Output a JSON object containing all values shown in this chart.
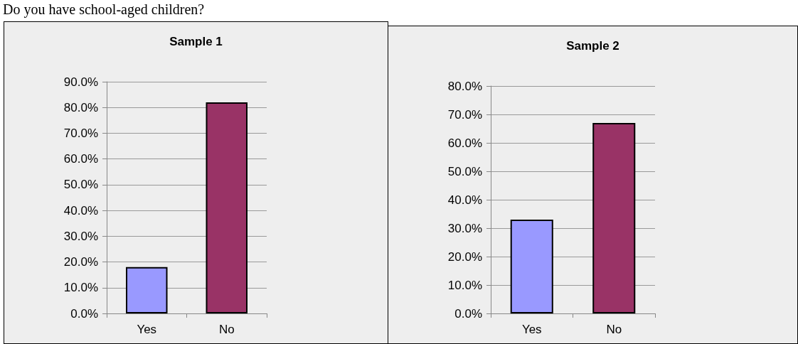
{
  "chart_data": [
    {
      "type": "bar",
      "title": "Sample 1",
      "annotations": [
        "Do you have school-aged children?"
      ],
      "categories": [
        "Yes",
        "No"
      ],
      "values": [
        18,
        82
      ],
      "colors": [
        "#9999ff",
        "#993366"
      ],
      "ylim": [
        0,
        90
      ],
      "yticks": [
        {
          "value": 0,
          "label": "0.0%"
        },
        {
          "value": 10,
          "label": "10.0%"
        },
        {
          "value": 20,
          "label": "20.0%"
        },
        {
          "value": 30,
          "label": "30.0%"
        },
        {
          "value": 40,
          "label": "40.0%"
        },
        {
          "value": 50,
          "label": "50.0%"
        },
        {
          "value": 60,
          "label": "60.0%"
        },
        {
          "value": 70,
          "label": "70.0%"
        },
        {
          "value": 80,
          "label": "80.0%"
        },
        {
          "value": 90,
          "label": "90.0%"
        }
      ],
      "grid": "y"
    },
    {
      "type": "bar",
      "title": "Sample 2",
      "categories": [
        "Yes",
        "No"
      ],
      "values": [
        33,
        67
      ],
      "colors": [
        "#9999ff",
        "#993366"
      ],
      "ylim": [
        0,
        80
      ],
      "yticks": [
        {
          "value": 0,
          "label": "0.0%"
        },
        {
          "value": 10,
          "label": "10.0%"
        },
        {
          "value": 20,
          "label": "20.0%"
        },
        {
          "value": 30,
          "label": "30.0%"
        },
        {
          "value": 40,
          "label": "40.0%"
        },
        {
          "value": 50,
          "label": "50.0%"
        },
        {
          "value": 60,
          "label": "60.0%"
        },
        {
          "value": 70,
          "label": "70.0%"
        },
        {
          "value": 80,
          "label": "80.0%"
        }
      ],
      "grid": "y"
    }
  ]
}
